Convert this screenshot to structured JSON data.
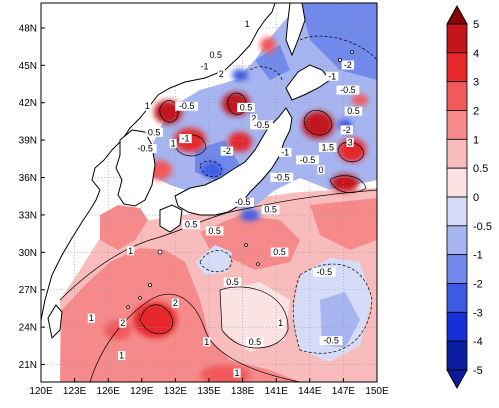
{
  "map": {
    "lon_range": [
      120,
      150
    ],
    "lat_range": [
      19.6,
      50
    ],
    "x_ticks": [
      "120E",
      "123E",
      "126E",
      "129E",
      "132E",
      "135E",
      "138E",
      "141E",
      "144E",
      "147E",
      "150E"
    ],
    "y_ticks": [
      "21N",
      "24N",
      "27N",
      "30N",
      "33N",
      "36N",
      "39N",
      "42N",
      "45N",
      "48N"
    ],
    "grid": true,
    "contour_labels": [
      {
        "text": "1",
        "lon": 138.4,
        "lat": 48.2
      },
      {
        "text": "0.5",
        "lon": 135.6,
        "lat": 45.7
      },
      {
        "text": "-1",
        "lon": 134.6,
        "lat": 44.8
      },
      {
        "text": "2",
        "lon": 136.1,
        "lat": 44.2
      },
      {
        "text": "-2",
        "lon": 147.4,
        "lat": 44.9
      },
      {
        "text": "-1",
        "lon": 146.0,
        "lat": 44.0
      },
      {
        "text": "-0.5",
        "lon": 147.4,
        "lat": 42.9
      },
      {
        "text": "-0.5",
        "lon": 133.0,
        "lat": 41.6
      },
      {
        "text": "1",
        "lon": 129.5,
        "lat": 41.6
      },
      {
        "text": "0.5",
        "lon": 138.3,
        "lat": 41.5
      },
      {
        "text": "0.5",
        "lon": 147.9,
        "lat": 41.2
      },
      {
        "text": "2",
        "lon": 139.0,
        "lat": 40.6
      },
      {
        "text": "-0.5",
        "lon": 139.7,
        "lat": 40.1
      },
      {
        "text": "0.5",
        "lon": 130.1,
        "lat": 39.5
      },
      {
        "text": "-2",
        "lon": 147.3,
        "lat": 39.7
      },
      {
        "text": "-1",
        "lon": 132.9,
        "lat": 39.0
      },
      {
        "text": "1",
        "lon": 131.8,
        "lat": 38.6
      },
      {
        "text": "-0.5",
        "lon": 129.3,
        "lat": 38.2
      },
      {
        "text": "3",
        "lon": 147.6,
        "lat": 38.7
      },
      {
        "text": "1.5",
        "lon": 145.6,
        "lat": 38.3
      },
      {
        "text": "-1",
        "lon": 141.8,
        "lat": 37.9
      },
      {
        "text": "-0.5",
        "lon": 143.8,
        "lat": 37.3
      },
      {
        "text": "-2",
        "lon": 136.6,
        "lat": 38.0
      },
      {
        "text": "-0.5",
        "lon": 141.5,
        "lat": 35.9
      },
      {
        "text": "0",
        "lon": 145.0,
        "lat": 36.5
      },
      {
        "text": "-0.5",
        "lon": 138.0,
        "lat": 33.9
      },
      {
        "text": "0.5",
        "lon": 140.5,
        "lat": 33.3
      },
      {
        "text": "0.5",
        "lon": 133.4,
        "lat": 32.1
      },
      {
        "text": "0.5",
        "lon": 135.5,
        "lat": 31.6
      },
      {
        "text": "1",
        "lon": 128.0,
        "lat": 30.0
      },
      {
        "text": "0.5",
        "lon": 141.3,
        "lat": 29.9
      },
      {
        "text": "-0.5",
        "lon": 145.3,
        "lat": 28.3
      },
      {
        "text": "0.5",
        "lon": 137.1,
        "lat": 27.5
      },
      {
        "text": "2",
        "lon": 132.0,
        "lat": 25.8
      },
      {
        "text": "1",
        "lon": 124.5,
        "lat": 24.6
      },
      {
        "text": "2",
        "lon": 127.3,
        "lat": 24.2
      },
      {
        "text": "1",
        "lon": 141.4,
        "lat": 24.2
      },
      {
        "text": "0.5",
        "lon": 139.1,
        "lat": 22.7
      },
      {
        "text": "1",
        "lon": 134.8,
        "lat": 22.7
      },
      {
        "text": "-0.5",
        "lon": 145.9,
        "lat": 22.8
      },
      {
        "text": "1",
        "lon": 127.2,
        "lat": 21.6
      },
      {
        "text": "1",
        "lon": 137.5,
        "lat": 20.2
      }
    ]
  },
  "colorbar": {
    "levels": [
      "5",
      "4",
      "3",
      "2",
      "1",
      "0.5",
      "0",
      "-0.5",
      "-1",
      "-2",
      "-3",
      "-4",
      "-5"
    ],
    "colors": [
      "#8b0000",
      "#c2161b",
      "#e6282a",
      "#f2595a",
      "#f68a8b",
      "#f9bcbc",
      "#fbe3e3",
      "#d5dcf7",
      "#a6b5f0",
      "#7089ea",
      "#3d5ae3",
      "#1530d6",
      "#0a1ca0"
    ]
  },
  "palette": {
    "land": "#ffffff",
    "coast": "#000000",
    "grid": "#9a9a9a",
    "contour": "#000000"
  }
}
